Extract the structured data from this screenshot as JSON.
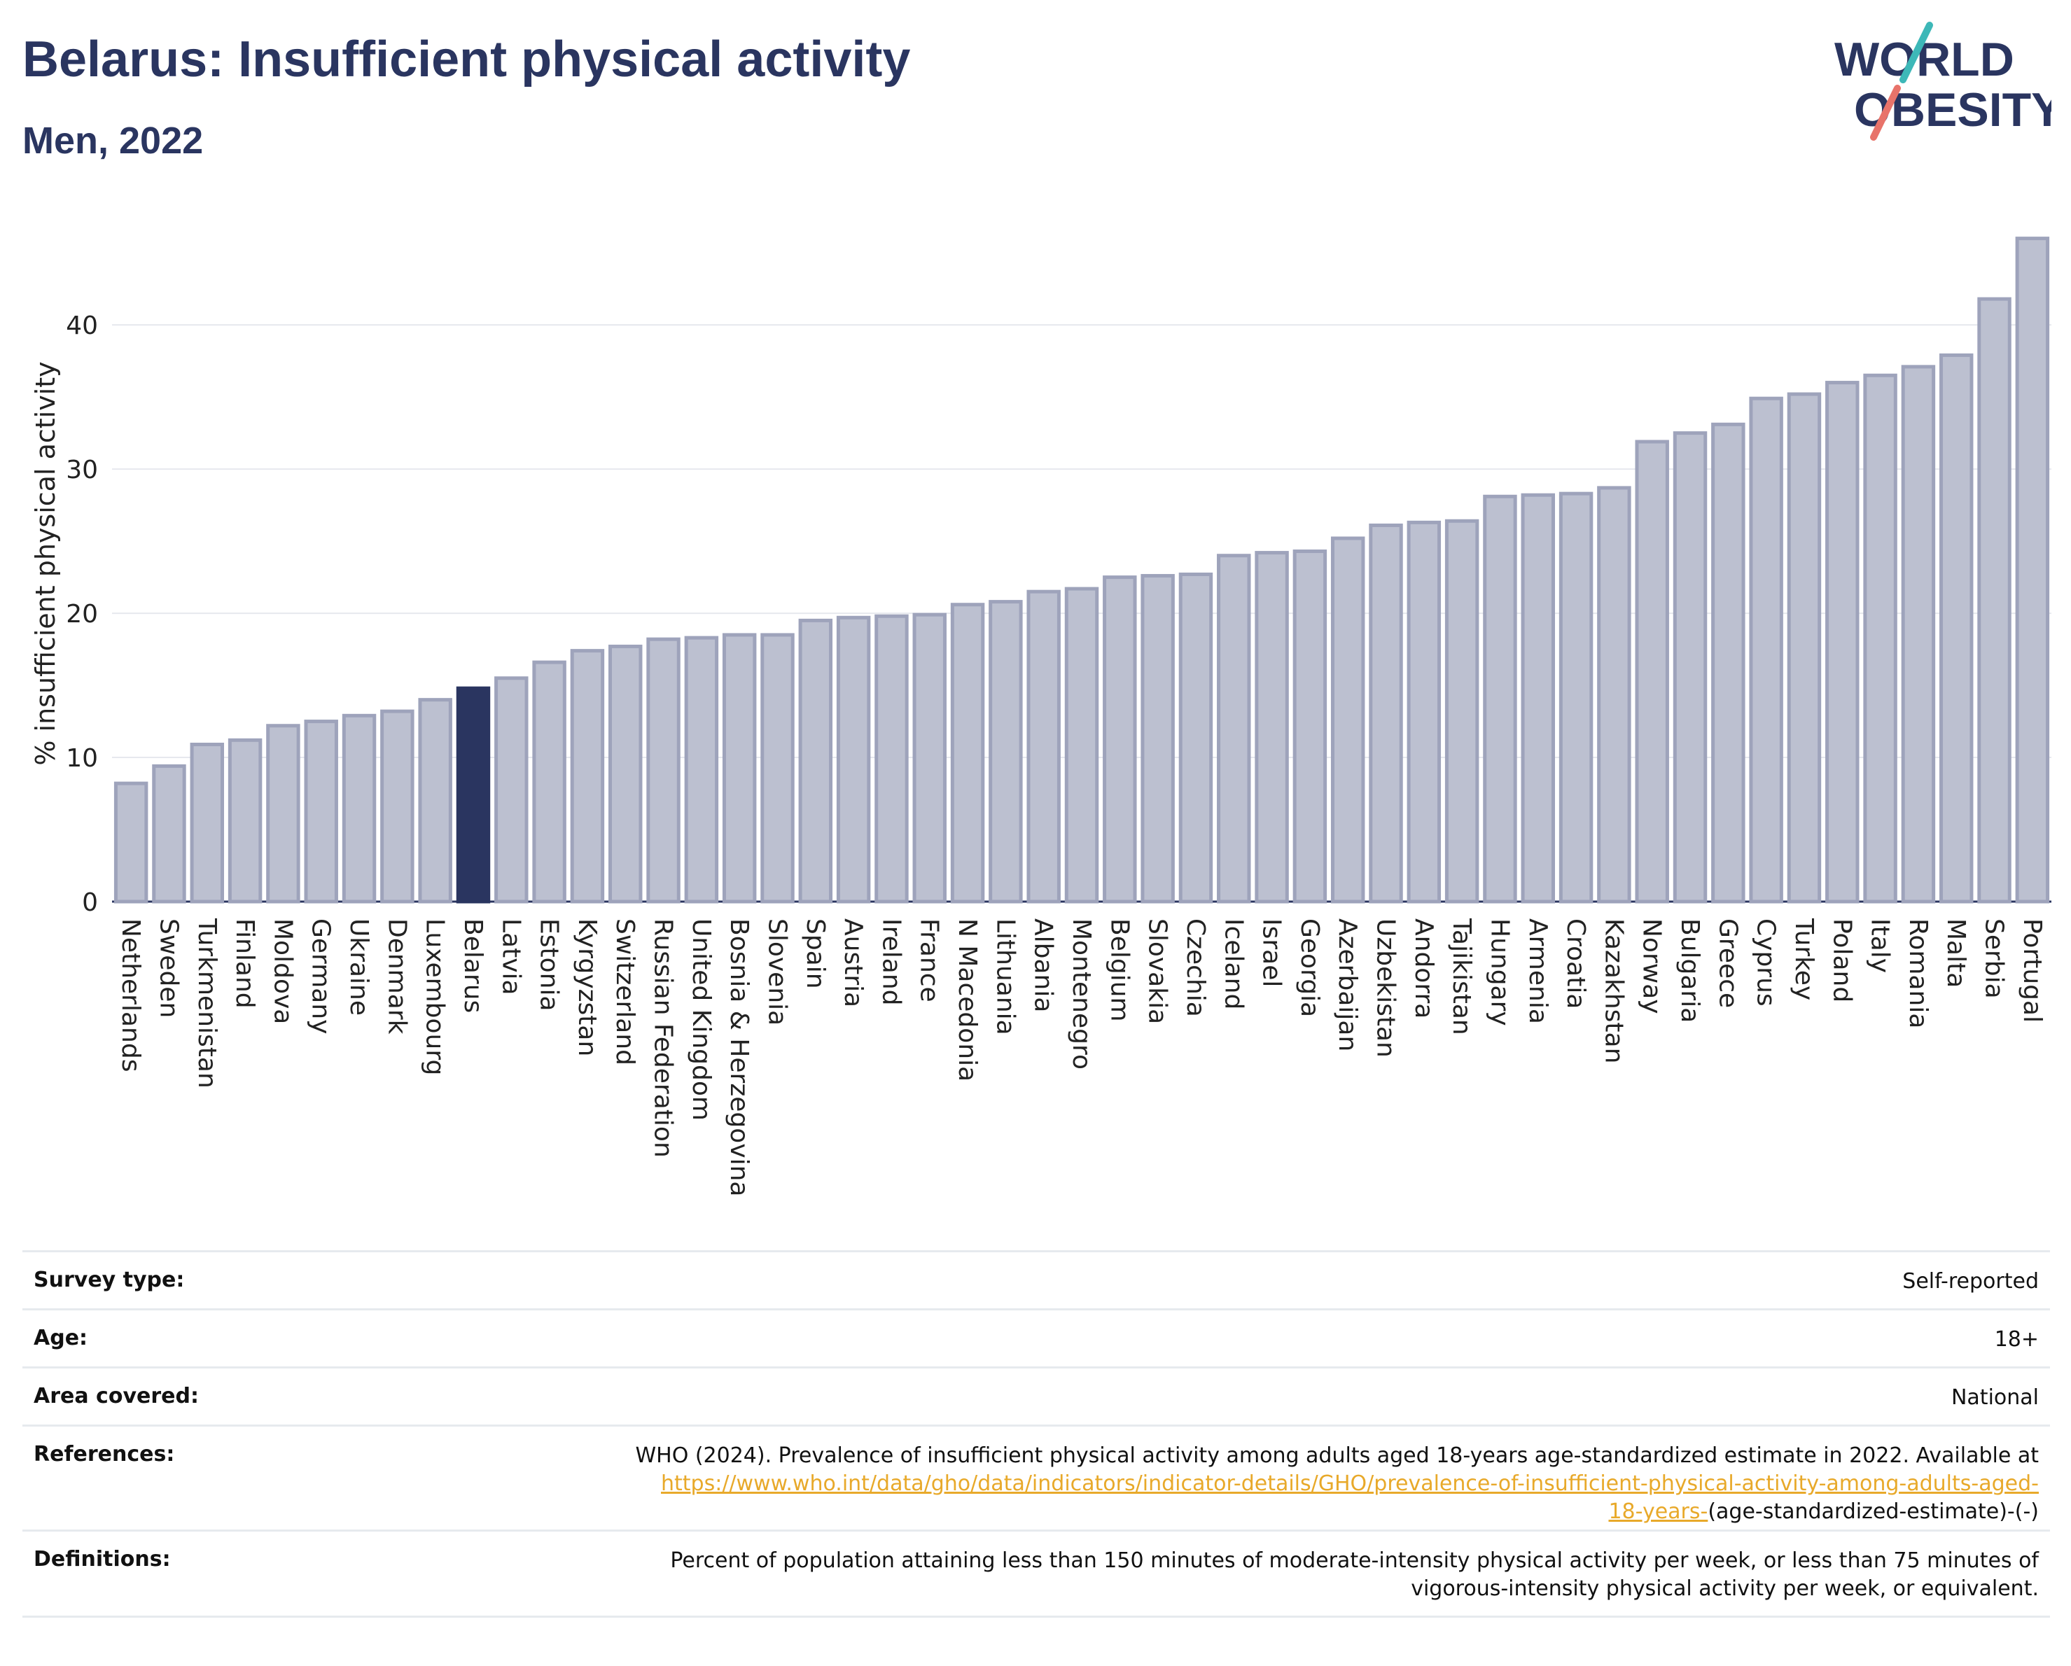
{
  "header": {
    "title": "Belarus: Insufficient physical activity",
    "subtitle": "Men, 2022"
  },
  "logo": {
    "line1": "WORLD",
    "line2": "OBESITY"
  },
  "colors": {
    "bar": "#bcc0d0",
    "bar_border": "#9ea3bb",
    "highlight": "#2a3560",
    "title": "#2a3560",
    "link": "#e8a92a",
    "logo_teal": "#3db8b8",
    "logo_coral": "#e8736a"
  },
  "chart_data": {
    "type": "bar",
    "ylabel": "% insufficient physical activity",
    "xlabel": "",
    "ylim": [
      0,
      47
    ],
    "yticks": [
      0,
      10,
      20,
      30,
      40
    ],
    "grid": true,
    "highlight": "Belarus",
    "categories": [
      "Netherlands",
      "Sweden",
      "Turkmenistan",
      "Finland",
      "Moldova",
      "Germany",
      "Ukraine",
      "Denmark",
      "Luxembourg",
      "Belarus",
      "Latvia",
      "Estonia",
      "Kyrgyzstan",
      "Switzerland",
      "Russian Federation",
      "United Kingdom",
      "Bosnia & Herzegovina",
      "Slovenia",
      "Spain",
      "Austria",
      "Ireland",
      "France",
      "N Macedonia",
      "Lithuania",
      "Albania",
      "Montenegro",
      "Belgium",
      "Slovakia",
      "Czechia",
      "Iceland",
      "Israel",
      "Georgia",
      "Azerbaijan",
      "Uzbekistan",
      "Andorra",
      "Tajikistan",
      "Hungary",
      "Armenia",
      "Croatia",
      "Kazakhstan",
      "Norway",
      "Bulgaria",
      "Greece",
      "Cyprus",
      "Turkey",
      "Poland",
      "Italy",
      "Romania",
      "Malta",
      "Serbia",
      "Portugal"
    ],
    "values": [
      8.2,
      9.4,
      10.9,
      11.2,
      12.2,
      12.5,
      12.9,
      13.2,
      14.0,
      14.8,
      15.5,
      16.6,
      17.4,
      17.7,
      18.2,
      18.3,
      18.5,
      18.5,
      19.5,
      19.7,
      19.8,
      19.9,
      20.6,
      20.8,
      21.5,
      21.7,
      22.5,
      22.6,
      22.7,
      24.0,
      24.2,
      24.3,
      25.2,
      26.1,
      26.3,
      26.4,
      28.1,
      28.2,
      28.3,
      28.7,
      31.9,
      32.5,
      33.1,
      34.9,
      35.2,
      36.0,
      36.5,
      37.1,
      37.9,
      41.8,
      46.0
    ]
  },
  "meta": {
    "survey_type": {
      "label": "Survey type:",
      "value": "Self-reported"
    },
    "age": {
      "label": "Age:",
      "value": "18+"
    },
    "area": {
      "label": "Area covered:",
      "value": "National"
    },
    "references": {
      "label": "References:",
      "text": "WHO (2024). Prevalence of insufficient physical activity among adults aged 18-years age-standardized estimate in 2022. Available at",
      "link_part1": "https://www.who.int/data/gho/data/indicators/indicator-details/GHO/prevalence-of-insufficient-physical-activity-among-adults-aged-",
      "link_part2": "18-years-",
      "suffix": "(age-standardized-estimate)-(-)"
    },
    "definitions": {
      "label": "Definitions:",
      "line1": "Percent of population attaining less than 150 minutes of moderate-intensity physical activity per week, or less than 75 minutes of",
      "line2": "vigorous-intensity physical activity per week, or equivalent."
    }
  }
}
